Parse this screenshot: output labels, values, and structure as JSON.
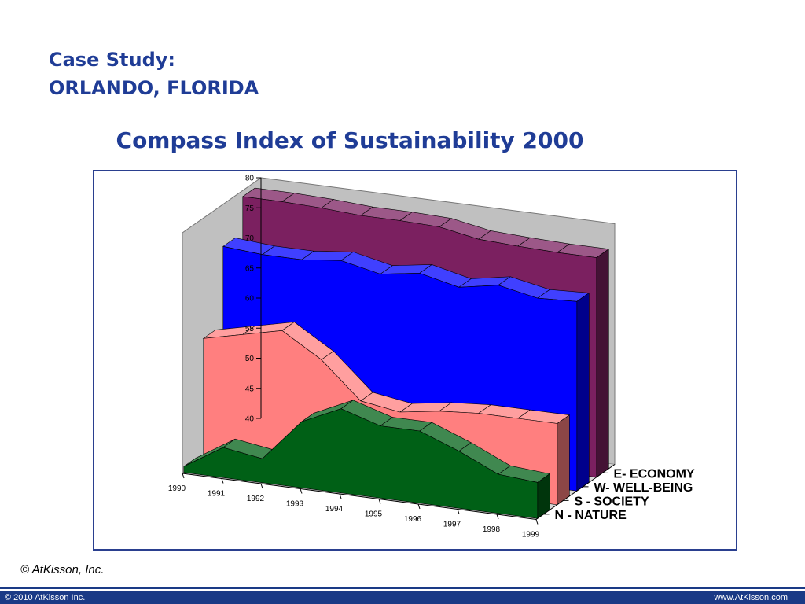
{
  "slide": {
    "case_study_line1": "Case Study:",
    "case_study_line2": "ORLANDO, FLORIDA",
    "copyright": "© AtKisson, Inc.",
    "footer_left": "© 2010 AtKisson Inc.",
    "footer_right": "www.AtKisson.com"
  },
  "chart_data": {
    "type": "area",
    "title": "Compass Index of Sustainability 2000",
    "chart_subtype": "3d-area",
    "x": [
      "1990",
      "1991",
      "1992",
      "1993",
      "1994",
      "1995",
      "1996",
      "1997",
      "1998",
      "1999"
    ],
    "yticks": [
      "40",
      "45",
      "50",
      "55",
      "60",
      "65",
      "70",
      "75",
      "80"
    ],
    "ylim": [
      40,
      80
    ],
    "grid": false,
    "legend": "right (series labels along depth axis)",
    "series": [
      {
        "name": "E- ECONOMY",
        "color": "#7b2060",
        "values": [
          79,
          79,
          78.8,
          78.4,
          78.4,
          78.2,
          77,
          76.7,
          76.5,
          76.5
        ]
      },
      {
        "name": "W- WELL-BEING",
        "color": "#0000ff",
        "values": [
          73,
          72.5,
          72.5,
          73.2,
          71.8,
          72.8,
          71.3,
          72.5,
          71.2,
          71.5
        ]
      },
      {
        "name": "S - SOCIETY",
        "color": "#ff7f7f",
        "values": [
          60,
          61.5,
          63,
          59,
          53,
          52,
          53,
          53.5,
          53.5,
          53.5
        ]
      },
      {
        "name": "N - NATURE",
        "color": "#006016",
        "values": [
          41,
          45,
          44,
          51,
          54,
          52,
          52,
          49.5,
          46.5,
          46
        ]
      }
    ]
  }
}
